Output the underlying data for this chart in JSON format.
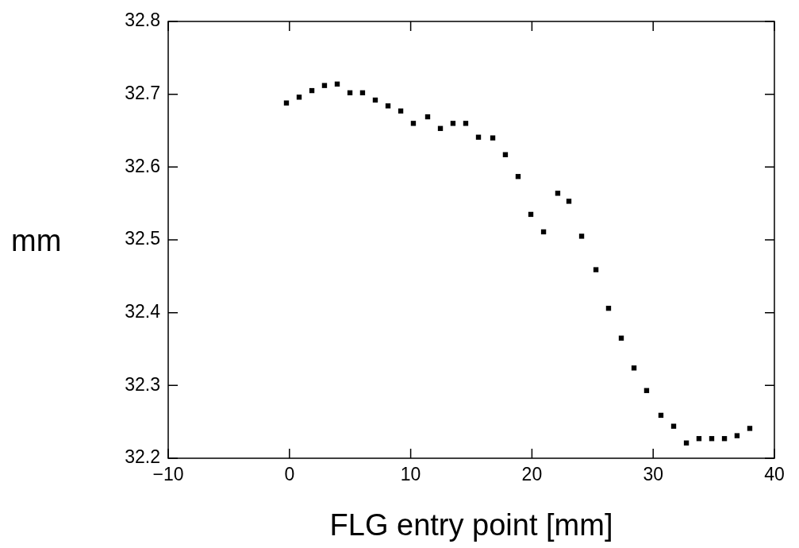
{
  "chart_data": {
    "type": "scatter",
    "xlabel": "FLG entry point [mm]",
    "ylabel": "mm",
    "x": [
      -0.25,
      0.8,
      1.85,
      2.89,
      3.94,
      4.99,
      6.03,
      7.08,
      8.13,
      9.18,
      10.22,
      11.4,
      12.45,
      13.49,
      14.54,
      15.59,
      16.77,
      17.81,
      18.86,
      19.91,
      20.96,
      22.13,
      23.05,
      24.1,
      25.28,
      26.32,
      27.37,
      28.42,
      29.46,
      30.64,
      31.69,
      32.74,
      33.78,
      34.83,
      35.88,
      36.92,
      37.97
    ],
    "series": [
      {
        "color": "#000000",
        "values": [
          32.688,
          32.696,
          32.705,
          32.712,
          32.714,
          32.702,
          32.702,
          32.692,
          32.684,
          32.677,
          32.66,
          32.669,
          32.653,
          32.66,
          32.66,
          32.641,
          32.64,
          32.617,
          32.587,
          32.535,
          32.511,
          32.564,
          32.553,
          32.505,
          32.459,
          32.406,
          32.365,
          32.324,
          32.293,
          32.259,
          32.244,
          32.221,
          32.227,
          32.227,
          32.227,
          32.231,
          32.241
        ]
      }
    ],
    "xlim": [
      -10,
      40
    ],
    "xticks": [
      -10,
      0,
      10,
      20,
      30,
      40
    ],
    "ylim": [
      32.2,
      32.8
    ],
    "yticks": [
      32.2,
      32.3,
      32.4,
      32.5,
      32.6,
      32.7,
      32.8
    ],
    "grid": false,
    "legend": false,
    "marker": "square"
  }
}
